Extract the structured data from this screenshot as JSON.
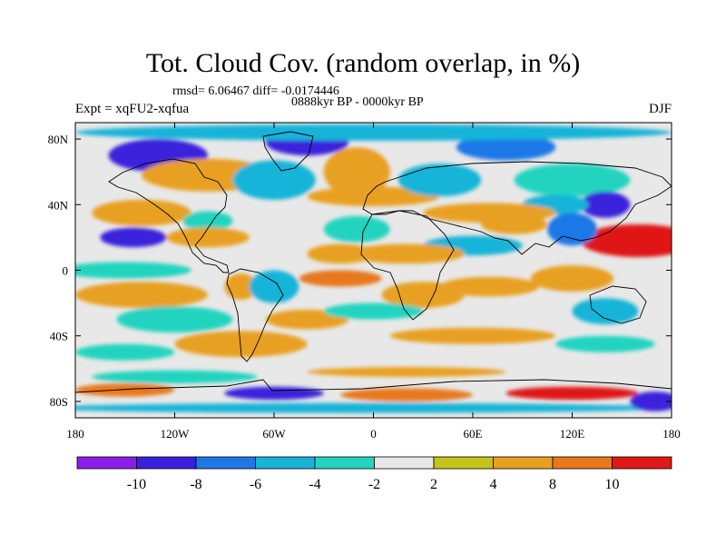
{
  "title": "Tot. Cloud Cov. (random overlap, in %)",
  "stats": "rmsd= 6.06467 diff= -0.0174446",
  "period": "0888kyr BP - 0000kyr BP",
  "experiment": "Expt = xqFU2-xqfua",
  "season": "DJF",
  "axes": {
    "x_ticks": [
      {
        "lon": -180,
        "label": "180"
      },
      {
        "lon": -120,
        "label": "120W"
      },
      {
        "lon": -60,
        "label": "60W"
      },
      {
        "lon": 0,
        "label": "0"
      },
      {
        "lon": 60,
        "label": "60E"
      },
      {
        "lon": 120,
        "label": "120E"
      },
      {
        "lon": 180,
        "label": "180"
      }
    ],
    "y_ticks": [
      {
        "lat": 80,
        "label": "80N"
      },
      {
        "lat": 40,
        "label": "40N"
      },
      {
        "lat": 0,
        "label": "0"
      },
      {
        "lat": -40,
        "label": "40S"
      },
      {
        "lat": -80,
        "label": "80S"
      }
    ]
  },
  "colorbar": {
    "colors": [
      "#8a1ee6",
      "#3a20dc",
      "#1f78e6",
      "#18b4d8",
      "#22d4c0",
      "#e8e8e8",
      "#c4c41a",
      "#e8a020",
      "#e8781a",
      "#e01818"
    ],
    "labels": [
      "-10",
      "-8",
      "-6",
      "-4",
      "-2",
      "2",
      "4",
      "8",
      "10"
    ]
  },
  "field_blobs": [
    {
      "lon": -130,
      "lat": 70,
      "rx": 30,
      "ry": 10,
      "v": -10
    },
    {
      "lon": -40,
      "lat": 78,
      "rx": 25,
      "ry": 8,
      "v": -10
    },
    {
      "lon": 80,
      "lat": 75,
      "rx": 30,
      "ry": 8,
      "v": -8
    },
    {
      "lon": 0,
      "lat": 84,
      "rx": 180,
      "ry": 5,
      "v": -6
    },
    {
      "lon": -100,
      "lat": 58,
      "rx": 40,
      "ry": 10,
      "v": 5
    },
    {
      "lon": -60,
      "lat": 55,
      "rx": 25,
      "ry": 12,
      "v": -6
    },
    {
      "lon": -10,
      "lat": 60,
      "rx": 20,
      "ry": 15,
      "v": 6
    },
    {
      "lon": 0,
      "lat": 45,
      "rx": 40,
      "ry": 6,
      "v": 4
    },
    {
      "lon": 40,
      "lat": 55,
      "rx": 25,
      "ry": 10,
      "v": -5
    },
    {
      "lon": 120,
      "lat": 55,
      "rx": 35,
      "ry": 10,
      "v": -4
    },
    {
      "lon": 140,
      "lat": 40,
      "rx": 15,
      "ry": 8,
      "v": -10
    },
    {
      "lon": 110,
      "lat": 40,
      "rx": 20,
      "ry": 6,
      "v": -5
    },
    {
      "lon": 70,
      "lat": 35,
      "rx": 40,
      "ry": 6,
      "v": 5
    },
    {
      "lon": -140,
      "lat": 35,
      "rx": 30,
      "ry": 8,
      "v": 6
    },
    {
      "lon": -100,
      "lat": 30,
      "rx": 15,
      "ry": 6,
      "v": -4
    },
    {
      "lon": -145,
      "lat": 20,
      "rx": 20,
      "ry": 6,
      "v": -10
    },
    {
      "lon": -100,
      "lat": 20,
      "rx": 25,
      "ry": 6,
      "v": 4
    },
    {
      "lon": 160,
      "lat": 18,
      "rx": 35,
      "ry": 10,
      "v": 11
    },
    {
      "lon": 120,
      "lat": 25,
      "rx": 15,
      "ry": 10,
      "v": -8
    },
    {
      "lon": 85,
      "lat": 28,
      "rx": 20,
      "ry": 6,
      "v": 5
    },
    {
      "lon": 60,
      "lat": 15,
      "rx": 30,
      "ry": 6,
      "v": -5
    },
    {
      "lon": 20,
      "lat": 10,
      "rx": 35,
      "ry": 6,
      "v": 4
    },
    {
      "lon": -10,
      "lat": 25,
      "rx": 20,
      "ry": 8,
      "v": -4
    },
    {
      "lon": -20,
      "lat": 10,
      "rx": 20,
      "ry": 6,
      "v": 5
    },
    {
      "lon": -150,
      "lat": 0,
      "rx": 40,
      "ry": 5,
      "v": -4
    },
    {
      "lon": -140,
      "lat": -15,
      "rx": 40,
      "ry": 8,
      "v": 7
    },
    {
      "lon": -80,
      "lat": -10,
      "rx": 10,
      "ry": 8,
      "v": 5
    },
    {
      "lon": -60,
      "lat": -10,
      "rx": 15,
      "ry": 10,
      "v": -5
    },
    {
      "lon": -20,
      "lat": -5,
      "rx": 25,
      "ry": 5,
      "v": 9
    },
    {
      "lon": 30,
      "lat": -15,
      "rx": 25,
      "ry": 8,
      "v": 4
    },
    {
      "lon": 70,
      "lat": -10,
      "rx": 30,
      "ry": 6,
      "v": 4
    },
    {
      "lon": 120,
      "lat": -5,
      "rx": 25,
      "ry": 8,
      "v": 6
    },
    {
      "lon": 140,
      "lat": -25,
      "rx": 20,
      "ry": 8,
      "v": -5
    },
    {
      "lon": -120,
      "lat": -30,
      "rx": 35,
      "ry": 8,
      "v": -4
    },
    {
      "lon": -40,
      "lat": -30,
      "rx": 25,
      "ry": 6,
      "v": 5
    },
    {
      "lon": 0,
      "lat": -25,
      "rx": 30,
      "ry": 5,
      "v": -4
    },
    {
      "lon": 60,
      "lat": -40,
      "rx": 50,
      "ry": 5,
      "v": 4
    },
    {
      "lon": -80,
      "lat": -45,
      "rx": 40,
      "ry": 8,
      "v": 5
    },
    {
      "lon": -150,
      "lat": -50,
      "rx": 30,
      "ry": 5,
      "v": -4
    },
    {
      "lon": 140,
      "lat": -45,
      "rx": 30,
      "ry": 5,
      "v": -4
    },
    {
      "lon": -120,
      "lat": -65,
      "rx": 50,
      "ry": 4,
      "v": -4
    },
    {
      "lon": 20,
      "lat": -62,
      "rx": 60,
      "ry": 3,
      "v": 4
    },
    {
      "lon": -150,
      "lat": -73,
      "rx": 30,
      "ry": 4,
      "v": 8
    },
    {
      "lon": -60,
      "lat": -75,
      "rx": 30,
      "ry": 4,
      "v": -9
    },
    {
      "lon": 20,
      "lat": -76,
      "rx": 40,
      "ry": 4,
      "v": 8
    },
    {
      "lon": 120,
      "lat": -75,
      "rx": 40,
      "ry": 4,
      "v": 11
    },
    {
      "lon": -10,
      "lat": -84,
      "rx": 190,
      "ry": 3,
      "v": -6
    },
    {
      "lon": 170,
      "lat": -80,
      "rx": 15,
      "ry": 6,
      "v": -10
    }
  ]
}
